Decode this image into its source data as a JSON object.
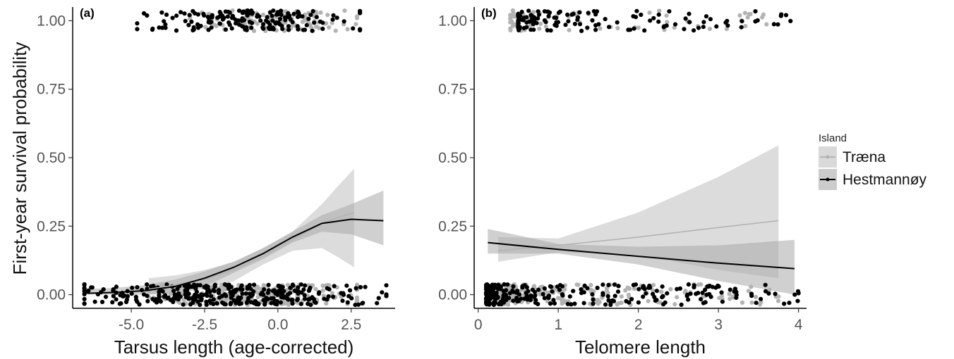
{
  "legend": {
    "title": "Island",
    "entries": [
      {
        "name": "Træna",
        "color": "#b3b3b3"
      },
      {
        "name": "Hestmannøy",
        "color": "#000000"
      }
    ]
  },
  "chart_data": [
    {
      "type": "scatter",
      "panel_label": "(a)",
      "xlabel": "Tarsus length (age-corrected)",
      "ylabel": "First-year survival probability",
      "xlim": [
        -7.0,
        4.0
      ],
      "ylim": [
        -0.05,
        1.05
      ],
      "x_ticks": [
        -5.0,
        -2.5,
        0.0,
        2.5
      ],
      "x_tick_labels": [
        "-5.0",
        "-2.5",
        "0.0",
        "2.5"
      ],
      "y_ticks": [
        0.0,
        0.25,
        0.5,
        0.75,
        1.0
      ],
      "y_tick_labels": [
        "0.00",
        "0.25",
        "0.50",
        "0.75",
        "1.00"
      ],
      "grid": false,
      "series": [
        {
          "name": "Træna",
          "color": "#b3b3b3",
          "fit": {
            "x": [
              -4.4,
              -3.5,
              -2.5,
              -1.5,
              -0.5,
              0.5,
              1.5,
              2.0,
              2.6
            ],
            "y": [
              0.02,
              0.035,
              0.055,
              0.09,
              0.14,
              0.2,
              0.26,
              0.28,
              0.3
            ],
            "lower": [
              0.0,
              0.005,
              0.02,
              0.05,
              0.11,
              0.16,
              0.17,
              0.14,
              0.1
            ],
            "upper": [
              0.06,
              0.07,
              0.09,
              0.12,
              0.17,
              0.23,
              0.33,
              0.39,
              0.46
            ]
          },
          "points": {
            "outcome_1": {
              "n": 110,
              "x_min": -3.0,
              "x_max": 2.7
            },
            "outcome_0": {
              "n": 260,
              "x_min": -4.4,
              "x_max": 2.7
            }
          }
        },
        {
          "name": "Hestmannøy",
          "color": "#000000",
          "fit": {
            "x": [
              -6.5,
              -5.5,
              -4.5,
              -3.5,
              -2.5,
              -1.5,
              -0.5,
              0.5,
              1.5,
              2.5,
              3.6
            ],
            "y": [
              0.005,
              0.008,
              0.015,
              0.03,
              0.06,
              0.1,
              0.15,
              0.21,
              0.26,
              0.275,
              0.27
            ],
            "lower": [
              0.0,
              0.0,
              0.0,
              0.005,
              0.03,
              0.08,
              0.13,
              0.19,
              0.23,
              0.22,
              0.18
            ],
            "upper": [
              0.02,
              0.025,
              0.035,
              0.055,
              0.085,
              0.12,
              0.17,
              0.23,
              0.29,
              0.33,
              0.38
            ]
          },
          "points": {
            "outcome_1": {
              "n": 170,
              "x_min": -4.8,
              "x_max": 2.8
            },
            "outcome_0": {
              "n": 330,
              "x_min": -6.6,
              "x_max": 3.7
            }
          }
        }
      ]
    },
    {
      "type": "scatter",
      "panel_label": "(b)",
      "xlabel": "Telomere length",
      "ylabel": "",
      "xlim": [
        -0.05,
        4.1
      ],
      "ylim": [
        -0.05,
        1.05
      ],
      "x_ticks": [
        0,
        1,
        2,
        3,
        4
      ],
      "x_tick_labels": [
        "0",
        "1",
        "2",
        "3",
        "4"
      ],
      "y_ticks": [
        0.0,
        0.25,
        0.5,
        0.75,
        1.0
      ],
      "y_tick_labels": [
        "0.00",
        "0.25",
        "0.50",
        "0.75",
        "1.00"
      ],
      "grid": false,
      "series": [
        {
          "name": "Træna",
          "color": "#b3b3b3",
          "fit": {
            "x": [
              0.25,
              1.0,
              2.0,
              3.0,
              3.75
            ],
            "y": [
              0.16,
              0.18,
              0.21,
              0.245,
              0.27
            ],
            "lower": [
              0.12,
              0.155,
              0.145,
              0.09,
              0.06
            ],
            "upper": [
              0.21,
              0.205,
              0.3,
              0.43,
              0.545
            ]
          },
          "points": {
            "outcome_1": {
              "n": 70,
              "x_min": 0.4,
              "x_max": 3.6
            },
            "outcome_0": {
              "n": 200,
              "x_min": 0.25,
              "x_max": 3.75
            }
          }
        },
        {
          "name": "Hestmannøy",
          "color": "#000000",
          "fit": {
            "x": [
              0.12,
              1.0,
              2.0,
              3.0,
              3.95
            ],
            "y": [
              0.19,
              0.165,
              0.14,
              0.115,
              0.095
            ],
            "lower": [
              0.15,
              0.15,
              0.11,
              0.05,
              0.0
            ],
            "upper": [
              0.24,
              0.185,
              0.175,
              0.18,
              0.2
            ]
          },
          "points": {
            "outcome_1": {
              "n": 130,
              "x_min": 0.5,
              "x_max": 3.9
            },
            "outcome_0": {
              "n": 280,
              "x_min": 0.1,
              "x_max": 4.0
            }
          }
        }
      ]
    }
  ]
}
